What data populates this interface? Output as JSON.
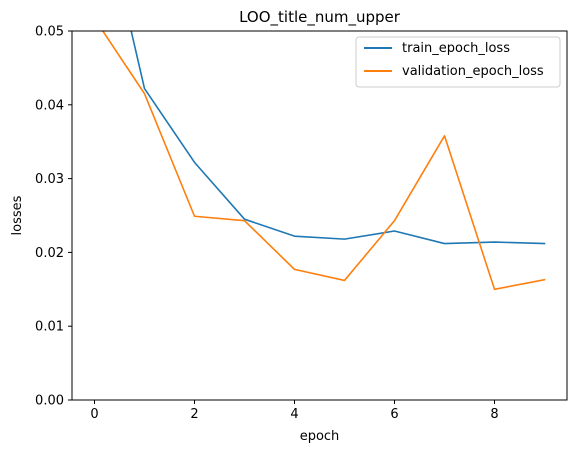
{
  "chart_data": {
    "type": "line",
    "title": "LOO_title_num_upper",
    "xlabel": "epoch",
    "ylabel": "losses",
    "xlim": [
      -0.45,
      9.45
    ],
    "ylim": [
      0.0,
      0.05
    ],
    "xticks": [
      0,
      2,
      4,
      6,
      8
    ],
    "yticks": [
      0.0,
      0.01,
      0.02,
      0.03,
      0.04,
      0.05
    ],
    "ytick_labels": [
      "0.00",
      "0.01",
      "0.02",
      "0.03",
      "0.04",
      "0.05"
    ],
    "grid": false,
    "legend_position": "upper right",
    "x": [
      0,
      1,
      2,
      3,
      4,
      5,
      6,
      7,
      8,
      9
    ],
    "series": [
      {
        "name": "train_epoch_loss",
        "color": "#1f77b4",
        "values": [
          0.0715,
          0.0422,
          0.0322,
          0.0245,
          0.0222,
          0.0218,
          0.0229,
          0.0212,
          0.0214,
          0.0212
        ]
      },
      {
        "name": "validation_epoch_loss",
        "color": "#ff7f0e",
        "values": [
          0.0517,
          0.0415,
          0.0249,
          0.0243,
          0.0177,
          0.0162,
          0.0243,
          0.0358,
          0.015,
          0.0163
        ]
      }
    ]
  }
}
